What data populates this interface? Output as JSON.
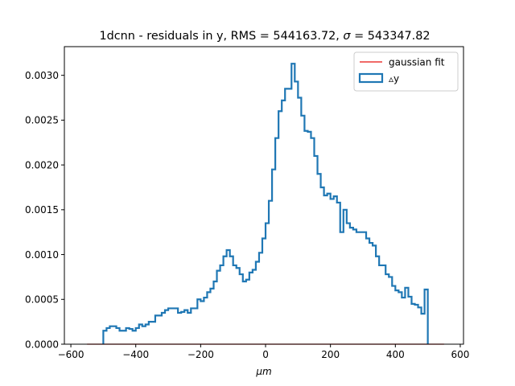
{
  "chart_data": {
    "type": "histogram",
    "title": {
      "prefix": "1dcnn - residuals in y, RMS = 544163.72, ",
      "sigma_symbol": "σ",
      "suffix": " = 543347.82"
    },
    "xlabel": "μm",
    "ylabel": "",
    "xlim": [
      -620,
      610
    ],
    "ylim": [
      0,
      0.00332
    ],
    "x_ticks": [
      -600,
      -400,
      -200,
      0,
      200,
      400,
      600
    ],
    "x_tick_labels": [
      "−600",
      "−400",
      "−200",
      "0",
      "200",
      "400",
      "600"
    ],
    "y_ticks": [
      0,
      0.0005,
      0.001,
      0.0015,
      0.002,
      0.0025,
      0.003
    ],
    "y_tick_labels": [
      "0.0000",
      "0.0005",
      "0.0010",
      "0.0015",
      "0.0020",
      "0.0025",
      "0.0030"
    ],
    "legend_position": "top-right",
    "series": [
      {
        "name": "gaussian fit",
        "kind": "line",
        "color": "#e8120f",
        "x": [
          -550,
          550
        ],
        "y": [
          0,
          0
        ]
      },
      {
        "name": "▵y",
        "kind": "step",
        "color": "#1f77b4",
        "bin_start": -500,
        "bin_width": 10,
        "values": [
          0.00015,
          0.00018,
          0.0002,
          0.0002,
          0.00018,
          0.00015,
          0.00015,
          0.00018,
          0.00017,
          0.00015,
          0.00018,
          0.00022,
          0.0002,
          0.00022,
          0.00025,
          0.00025,
          0.00032,
          0.00032,
          0.00035,
          0.00038,
          0.0004,
          0.0004,
          0.0004,
          0.00035,
          0.00036,
          0.00038,
          0.00035,
          0.0004,
          0.0004,
          0.0005,
          0.00048,
          0.00052,
          0.00058,
          0.00062,
          0.0007,
          0.00082,
          0.00088,
          0.00098,
          0.00105,
          0.00098,
          0.00088,
          0.00085,
          0.00078,
          0.0007,
          0.00072,
          0.0008,
          0.00083,
          0.00092,
          0.00102,
          0.00118,
          0.00135,
          0.0016,
          0.00195,
          0.0023,
          0.0026,
          0.00272,
          0.00285,
          0.00285,
          0.00313,
          0.00293,
          0.00275,
          0.00255,
          0.00238,
          0.00237,
          0.0023,
          0.0021,
          0.0019,
          0.00175,
          0.00166,
          0.00168,
          0.00162,
          0.00165,
          0.00158,
          0.00125,
          0.0015,
          0.00135,
          0.0013,
          0.00128,
          0.00125,
          0.00125,
          0.00125,
          0.00118,
          0.00113,
          0.0011,
          0.00098,
          0.00088,
          0.00088,
          0.00078,
          0.00075,
          0.00065,
          0.0006,
          0.00058,
          0.00052,
          0.00063,
          0.00053,
          0.00045,
          0.00044,
          0.00041,
          0.00034,
          0.00061
        ]
      }
    ]
  }
}
